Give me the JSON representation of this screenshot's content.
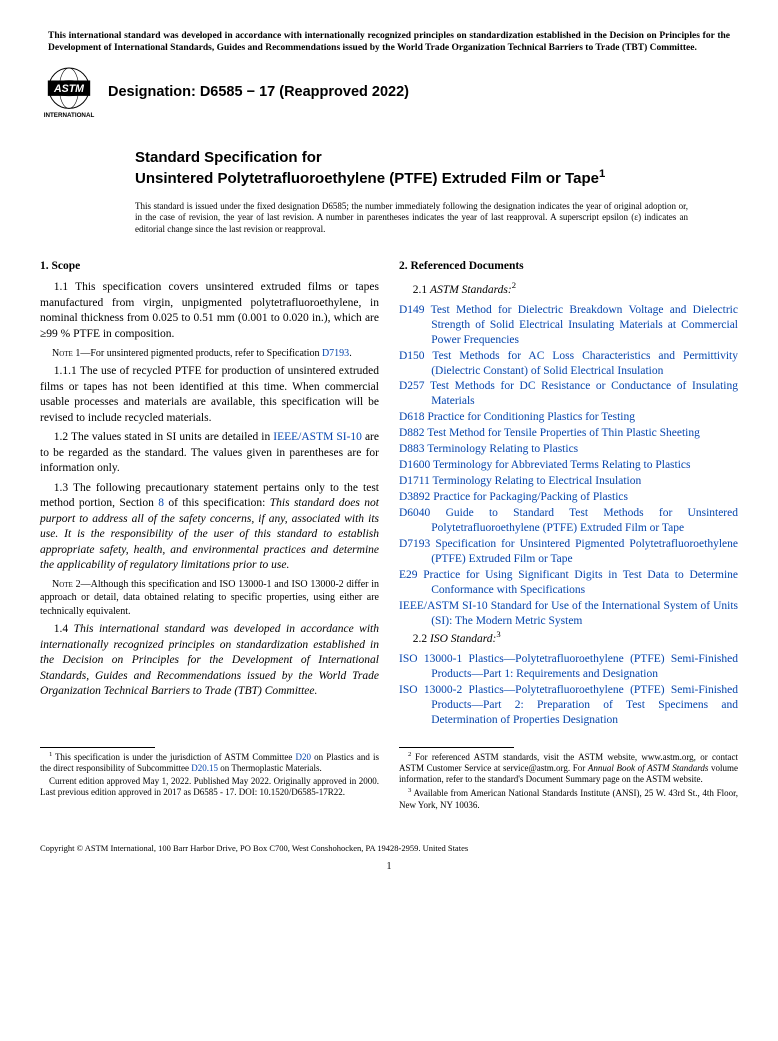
{
  "top_notice": "This international standard was developed in accordance with internationally recognized principles on standardization established in the Decision on Principles for the Development of International Standards, Guides and Recommendations issued by the World Trade Organization Technical Barriers to Trade (TBT) Committee.",
  "logo_label": "INTERNATIONAL",
  "designation": "Designation: D6585 − 17 (Reapproved 2022)",
  "title_kicker": "Standard Specification for",
  "title_main": "Unsintered Polytetrafluoroethylene (PTFE) Extruded Film or Tape",
  "title_super": "1",
  "issuance_note": "This standard is issued under the fixed designation D6585; the number immediately following the designation indicates the year of original adoption or, in the case of revision, the year of last revision. A number in parentheses indicates the year of last reapproval. A superscript epsilon (ε) indicates an editorial change since the last revision or reapproval.",
  "scope": {
    "heading": "1. Scope",
    "p1_1": "1.1 This specification covers unsintered extruded films or tapes manufactured from virgin, unpigmented polytetrafluoroethylene, in nominal thickness from 0.025 to 0.51 mm (0.001 to 0.020 in.), which are ≥99 % PTFE in composition.",
    "note1_label": "Note 1—",
    "note1_text": "For unsintered pigmented products, refer to Specification ",
    "note1_link": "D7193",
    "note1_tail": ".",
    "p1_1_1": "1.1.1 The use of recycled PTFE for production of unsintered extruded films or tapes has not been identified at this time. When commercial usable processes and materials are available, this specification will be revised to include recycled materials.",
    "p1_2_a": "1.2 The values stated in SI units are detailed in ",
    "p1_2_link": "IEEE/ASTM SI-10",
    "p1_2_b": " are to be regarded as the standard. The values given in parentheses are for information only.",
    "p1_3_a": "1.3 The following precautionary statement pertains only to the test method portion, Section ",
    "p1_3_link": "8",
    "p1_3_b": " of this specification: ",
    "p1_3_italic": "This standard does not purport to address all of the safety concerns, if any, associated with its use. It is the responsibility of the user of this standard to establish appropriate safety, health, and environmental practices and determine the applicability of regulatory limitations prior to use.",
    "note2_label": "Note 2—",
    "note2_text": "Although this specification and ISO 13000-1 and ISO 13000-2 differ in approach or detail, data obtained relating to specific properties, using either are technically equivalent.",
    "p1_4_a": "1.4 ",
    "p1_4_italic": "This international standard was developed in accordance with internationally recognized principles on standardization established in the Decision on Principles for the Development of International Standards, Guides and Recommendations issued by the World Trade Organization Technical Barriers to Trade (TBT) Committee."
  },
  "refs": {
    "heading": "2. Referenced Documents",
    "sub2_1_num": "2.1 ",
    "sub2_1_lbl": "ASTM Standards:",
    "sub2_1_sup": "2",
    "items": [
      {
        "code": "D149",
        "desc": "Test Method for Dielectric Breakdown Voltage and Dielectric Strength of Solid Electrical Insulating Materials at Commercial Power Frequencies"
      },
      {
        "code": "D150",
        "desc": "Test Methods for AC Loss Characteristics and Permittivity (Dielectric Constant) of Solid Electrical Insulation"
      },
      {
        "code": "D257",
        "desc": "Test Methods for DC Resistance or Conductance of Insulating Materials"
      },
      {
        "code": "D618",
        "desc": "Practice for Conditioning Plastics for Testing"
      },
      {
        "code": "D882",
        "desc": "Test Method for Tensile Properties of Thin Plastic Sheeting"
      },
      {
        "code": "D883",
        "desc": "Terminology Relating to Plastics"
      },
      {
        "code": "D1600",
        "desc": "Terminology for Abbreviated Terms Relating to Plastics"
      },
      {
        "code": "D1711",
        "desc": "Terminology Relating to Electrical Insulation"
      },
      {
        "code": "D3892",
        "desc": "Practice for Packaging/Packing of Plastics"
      },
      {
        "code": "D6040",
        "desc": "Guide to Standard Test Methods for Unsintered Polytetrafluoroethylene (PTFE) Extruded Film or Tape"
      },
      {
        "code": "D7193",
        "desc": "Specification for Unsintered Pigmented Polytetrafluoroethylene (PTFE) Extruded Film or Tape"
      },
      {
        "code": "E29",
        "desc": "Practice for Using Significant Digits in Test Data to Determine Conformance with Specifications"
      },
      {
        "code": "IEEE/ASTM SI-10",
        "desc": "Standard for Use of the International System of Units (SI): The Modern Metric System"
      }
    ],
    "sub2_2_num": "2.2 ",
    "sub2_2_lbl": "ISO Standard:",
    "sub2_2_sup": "3",
    "iso_items": [
      {
        "code": "ISO 13000-1",
        "desc": "Plastics—Polytetrafluoroethylene (PTFE) Semi-Finished Products—Part 1: Requirements and Designation"
      },
      {
        "code": "ISO 13000-2",
        "desc": "Plastics—Polytetrafluoroethylene (PTFE) Semi-Finished Products—Part 2: Preparation of Test Specimens and Determination of Properties Designation"
      }
    ]
  },
  "footnotes": {
    "fn1_a": "This specification is under the jurisdiction of ASTM Committee ",
    "fn1_link1": "D20",
    "fn1_b": " on Plastics and is the direct responsibility of Subcommittee ",
    "fn1_link2": "D20.15",
    "fn1_c": " on Thermoplastic Materials.",
    "fn1_p2": "Current edition approved May 1, 2022. Published May 2022. Originally approved in 2000. Last previous edition approved in 2017 as D6585 - 17. DOI: 10.1520/D6585-17R22.",
    "fn2_a": "For referenced ASTM standards, visit the ASTM website, www.astm.org, or contact ASTM Customer Service at service@astm.org. For ",
    "fn2_italic": "Annual Book of ASTM Standards",
    "fn2_b": " volume information, refer to the standard's Document Summary page on the ASTM website.",
    "fn3": "Available from American National Standards Institute (ANSI), 25 W. 43rd St., 4th Floor, New York, NY 10036."
  },
  "copyright": "Copyright © ASTM International, 100 Barr Harbor Drive, PO Box C700, West Conshohocken, PA 19428-2959. United States",
  "page_number": "1"
}
